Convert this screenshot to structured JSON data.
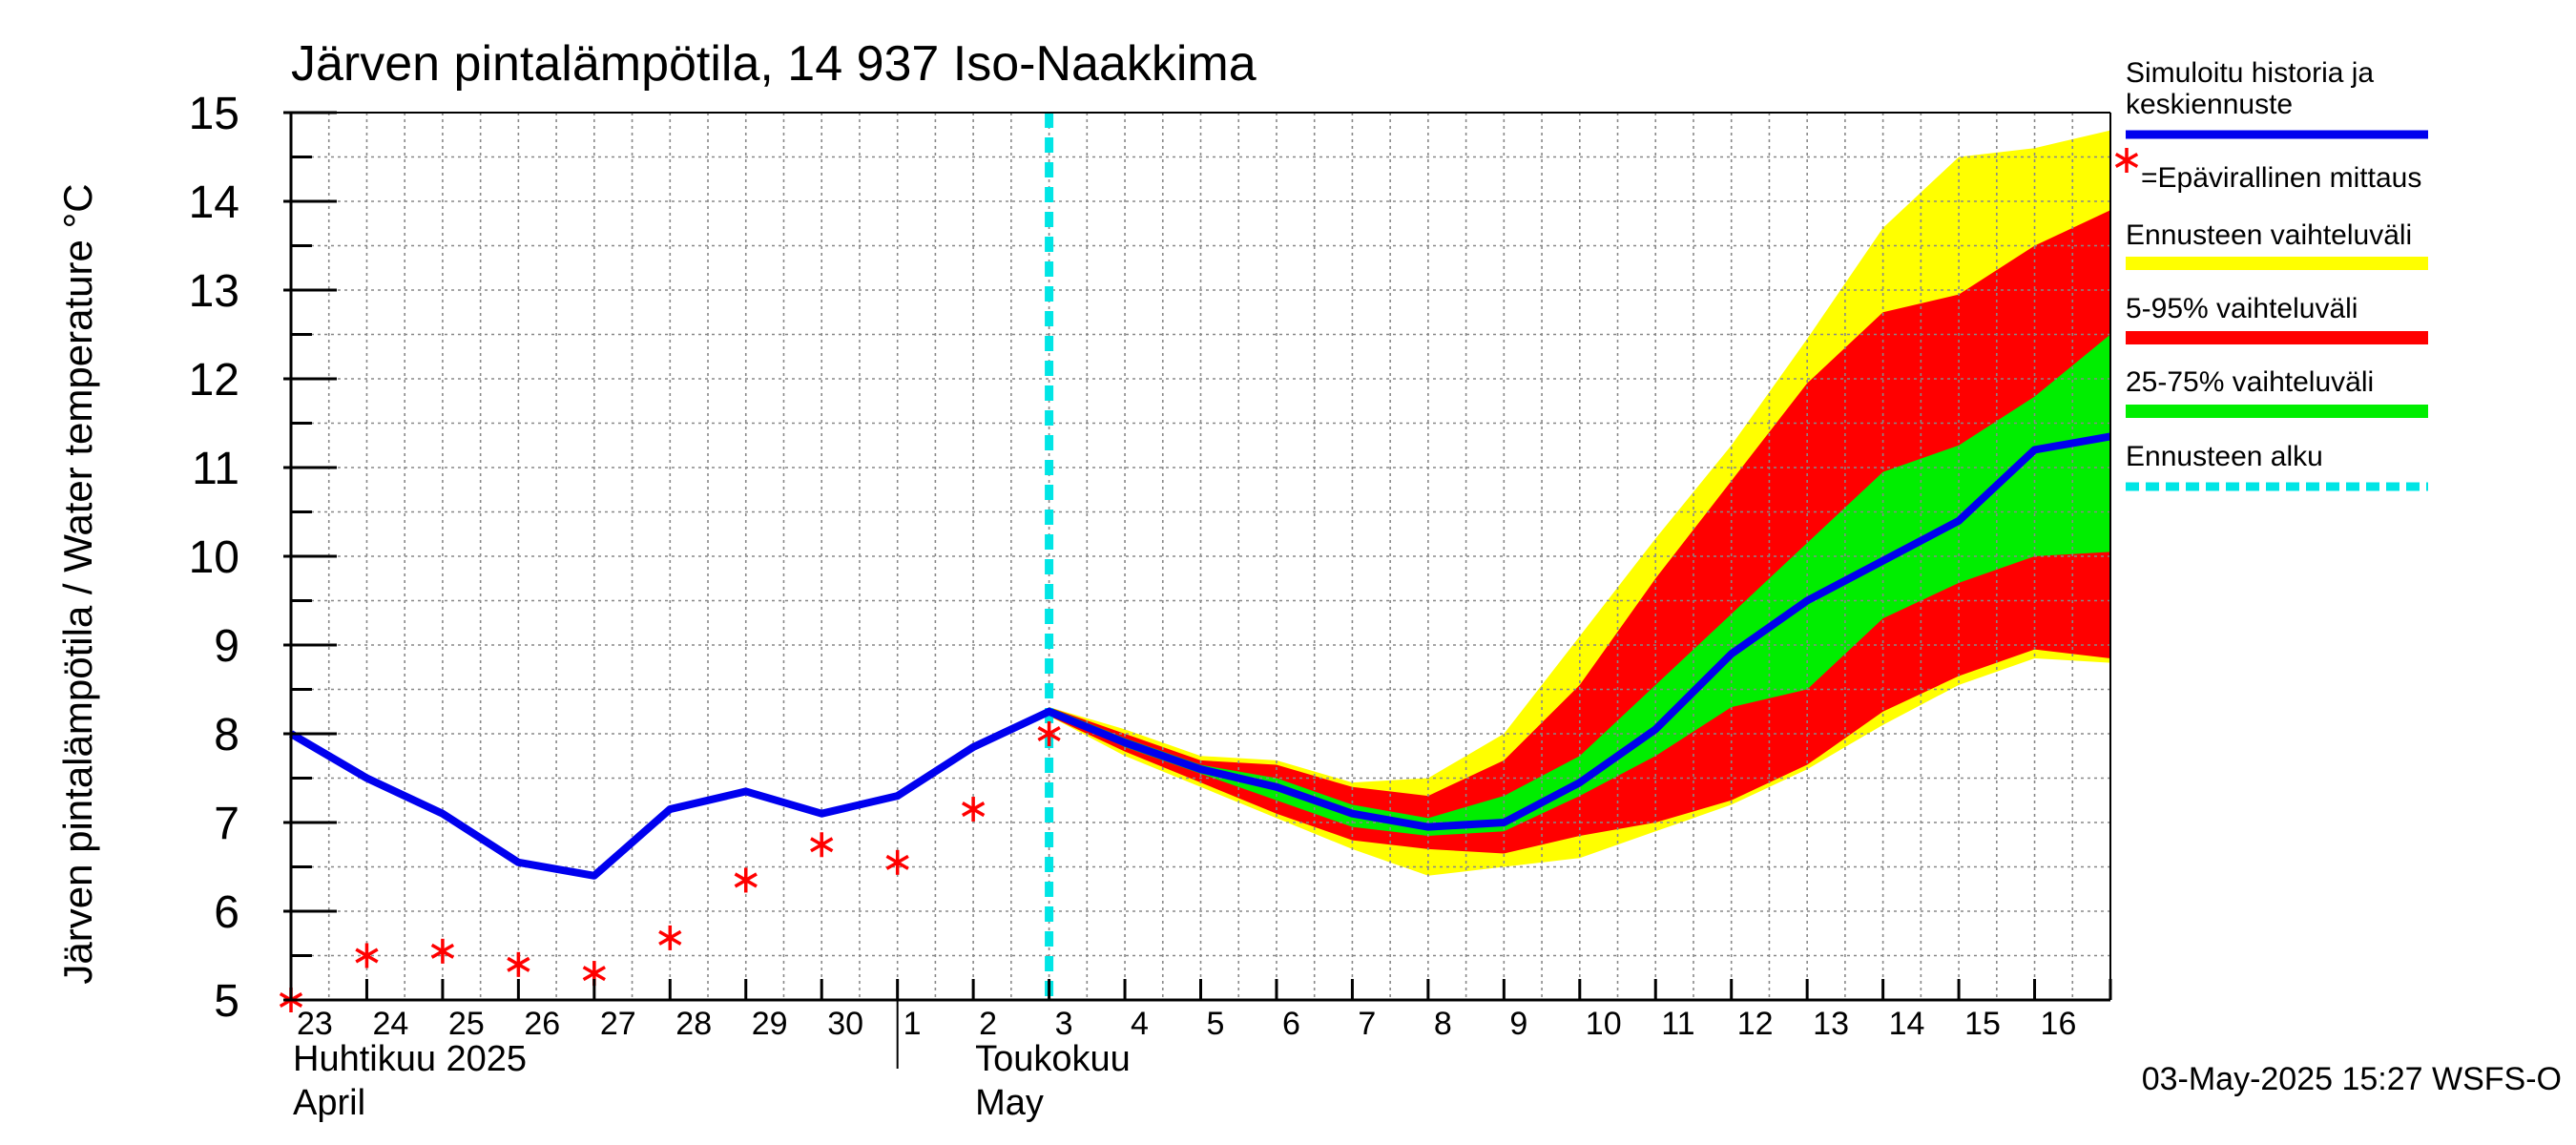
{
  "chart_data": {
    "type": "line",
    "title": "Järven pintalämpötila, 14 937 Iso-Naakkima",
    "ylabel": "Järven pintalämpötila / Water temperature °C",
    "ylim": [
      5,
      15
    ],
    "yticks": [
      "5",
      "6",
      "7",
      "8",
      "9",
      "10",
      "11",
      "12",
      "13",
      "14",
      "15"
    ],
    "x_range": [
      0,
      24
    ],
    "day_ticks": [
      {
        "x": 0,
        "label": "23"
      },
      {
        "x": 1,
        "label": "24"
      },
      {
        "x": 2,
        "label": "25"
      },
      {
        "x": 3,
        "label": "26"
      },
      {
        "x": 4,
        "label": "27"
      },
      {
        "x": 5,
        "label": "28"
      },
      {
        "x": 6,
        "label": "29"
      },
      {
        "x": 7,
        "label": "30"
      },
      {
        "x": 8,
        "label": "1"
      },
      {
        "x": 9,
        "label": "2"
      },
      {
        "x": 10,
        "label": "3"
      },
      {
        "x": 11,
        "label": "4"
      },
      {
        "x": 12,
        "label": "5"
      },
      {
        "x": 13,
        "label": "6"
      },
      {
        "x": 14,
        "label": "7"
      },
      {
        "x": 15,
        "label": "8"
      },
      {
        "x": 16,
        "label": "9"
      },
      {
        "x": 17,
        "label": "10"
      },
      {
        "x": 18,
        "label": "11"
      },
      {
        "x": 19,
        "label": "12"
      },
      {
        "x": 20,
        "label": "13"
      },
      {
        "x": 21,
        "label": "14"
      },
      {
        "x": 22,
        "label": "15"
      },
      {
        "x": 23,
        "label": "16"
      }
    ],
    "month_separator_x": 8,
    "month_labels": [
      {
        "x": 0,
        "fi": "Huhtikuu  2025",
        "en": "April"
      },
      {
        "x": 9,
        "fi": "Toukokuu",
        "en": "May"
      }
    ],
    "forecast_start_x": 10,
    "series": [
      {
        "name": "Simuloitu historia ja keskiennuste",
        "color": "#0000ee",
        "x": [
          0,
          1,
          2,
          3,
          4,
          5,
          6,
          7,
          8,
          9,
          10,
          11,
          12,
          13,
          14,
          15,
          16,
          17,
          18,
          19,
          20,
          21,
          22,
          23,
          24
        ],
        "values": [
          8.0,
          7.5,
          7.1,
          6.55,
          6.4,
          7.15,
          7.35,
          7.1,
          7.3,
          7.85,
          8.25,
          7.9,
          7.6,
          7.4,
          7.1,
          6.95,
          7.0,
          7.45,
          8.05,
          8.9,
          9.5,
          9.95,
          10.4,
          11.2,
          11.35
        ]
      },
      {
        "name": "Epävirallinen mittaus",
        "color": "#ff0000",
        "marker": "asterisk",
        "x": [
          0,
          1,
          2,
          3,
          4,
          5,
          6,
          7,
          8,
          9,
          10
        ],
        "values": [
          5.0,
          5.5,
          5.55,
          5.4,
          5.3,
          5.7,
          6.35,
          6.75,
          6.55,
          7.15,
          8.0
        ]
      }
    ],
    "bands": [
      {
        "name": "Ennusteen vaihteluväli",
        "color": "#ffff00",
        "x": [
          10,
          11,
          12,
          13,
          14,
          15,
          16,
          17,
          18,
          19,
          20,
          21,
          22,
          23,
          24
        ],
        "upper": [
          8.3,
          8.05,
          7.75,
          7.7,
          7.45,
          7.5,
          8.0,
          9.1,
          10.2,
          11.25,
          12.45,
          13.7,
          14.5,
          14.6,
          14.8
        ],
        "lower": [
          8.2,
          7.75,
          7.4,
          7.05,
          6.7,
          6.4,
          6.5,
          6.6,
          6.9,
          7.2,
          7.6,
          8.1,
          8.55,
          8.85,
          8.8
        ]
      },
      {
        "name": "5-95% vaihteluväli",
        "color": "#ff0000",
        "x": [
          10,
          11,
          12,
          13,
          14,
          15,
          16,
          17,
          18,
          19,
          20,
          21,
          22,
          23,
          24
        ],
        "upper": [
          8.3,
          8.0,
          7.7,
          7.65,
          7.4,
          7.3,
          7.7,
          8.55,
          9.75,
          10.85,
          11.95,
          12.75,
          12.95,
          13.5,
          13.9
        ],
        "lower": [
          8.2,
          7.8,
          7.45,
          7.1,
          6.8,
          6.7,
          6.65,
          6.85,
          7.0,
          7.25,
          7.65,
          8.25,
          8.65,
          8.95,
          8.85
        ]
      },
      {
        "name": "25-75% vaihteluväli",
        "color": "#00ee00",
        "x": [
          10,
          11,
          12,
          13,
          14,
          15,
          16,
          17,
          18,
          19,
          20,
          21,
          22,
          23,
          24
        ],
        "upper": [
          8.3,
          7.95,
          7.65,
          7.5,
          7.2,
          7.05,
          7.3,
          7.75,
          8.55,
          9.35,
          10.15,
          10.95,
          11.25,
          11.8,
          12.5
        ],
        "lower": [
          8.25,
          7.85,
          7.55,
          7.25,
          6.95,
          6.85,
          6.9,
          7.3,
          7.75,
          8.3,
          8.5,
          9.3,
          9.7,
          10.0,
          10.05
        ]
      }
    ],
    "legend_position": "right",
    "legend": [
      {
        "label": "Simuloitu historia ja",
        "label2": "keskiennuste",
        "kind": "line",
        "color": "#0000ee"
      },
      {
        "label": "=Epävirallinen mittaus",
        "kind": "marker",
        "color": "#ff0000"
      },
      {
        "label": "Ennusteen vaihteluväli",
        "kind": "line",
        "color": "#ffff00"
      },
      {
        "label": "5-95% vaihteluväli",
        "kind": "line",
        "color": "#ff0000"
      },
      {
        "label": "25-75% vaihteluväli",
        "kind": "line",
        "color": "#00ee00"
      },
      {
        "label": "Ennusteen alku",
        "kind": "dashed",
        "color": "#00e5e5"
      }
    ],
    "footer": "03-May-2025 15:27 WSFS-O"
  }
}
